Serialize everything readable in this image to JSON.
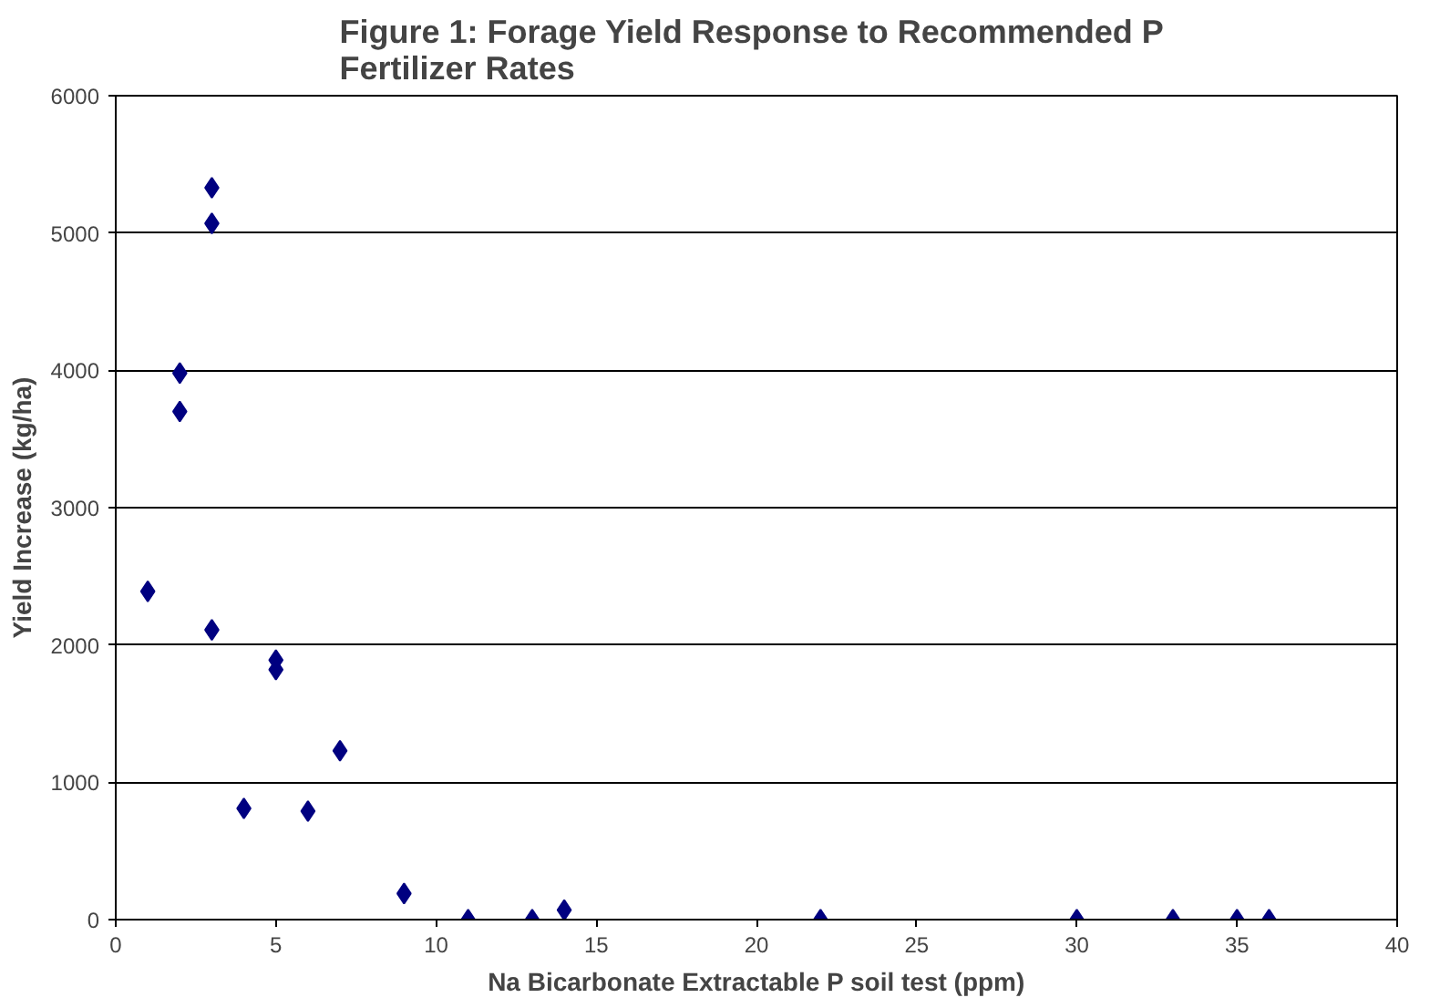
{
  "chart_data": {
    "type": "scatter",
    "title": "Figure 1:  Forage Yield Response to Recommended P Fertilizer Rates",
    "xlabel": "Na Bicarbonate Extractable P soil test (ppm)",
    "ylabel": "Yield Increase (kg/ha)",
    "series": [
      {
        "color": "#000080",
        "x": [
          1,
          2,
          2,
          3,
          3,
          3,
          4,
          5,
          5,
          6,
          7,
          9,
          11,
          13,
          14,
          22,
          30,
          33,
          35,
          36
        ],
        "values": [
          2390,
          3980,
          3700,
          5330,
          5070,
          2110,
          810,
          1890,
          1820,
          790,
          1230,
          190,
          0,
          0,
          70,
          0,
          0,
          0,
          0,
          0
        ]
      }
    ],
    "xlim": [
      0,
      40
    ],
    "xticks": [
      0,
      5,
      10,
      15,
      20,
      25,
      30,
      35,
      40
    ],
    "ylim": [
      0,
      6000
    ],
    "yticks": [
      0,
      1000,
      2000,
      3000,
      4000,
      5000,
      6000
    ],
    "grid": "y",
    "marker": "diamond"
  }
}
